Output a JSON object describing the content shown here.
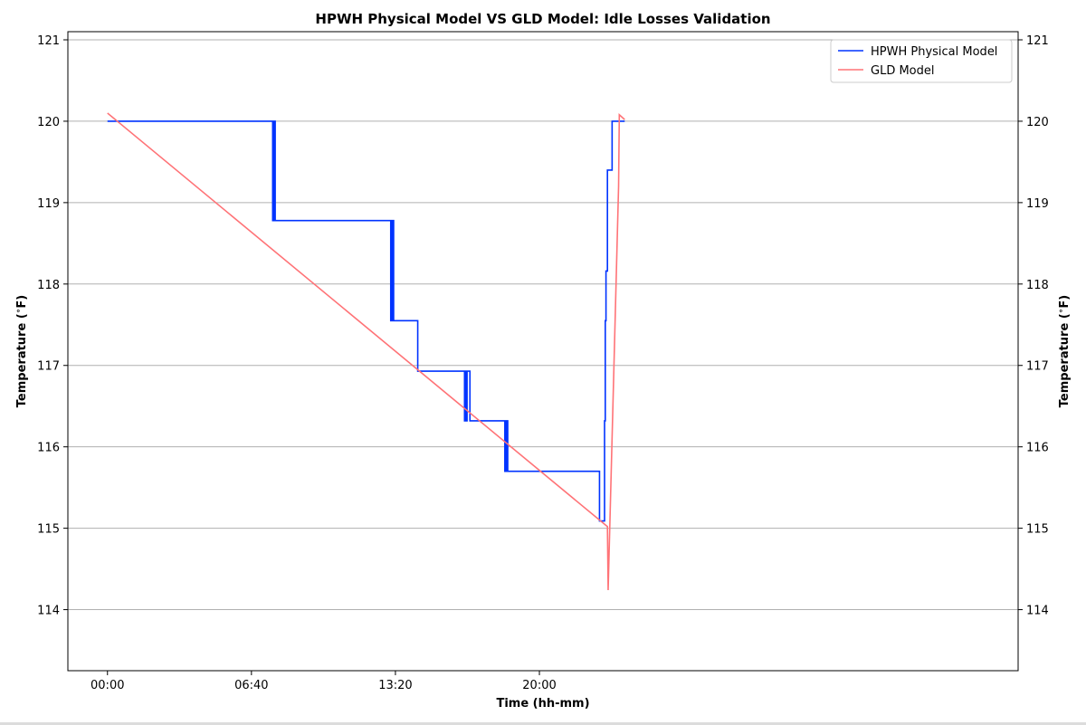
{
  "chart_data": {
    "type": "line",
    "title": "HPWH Physical Model VS GLD Model: Idle Losses Validation",
    "xlabel": "Time (hh-mm)",
    "ylabel": "Temperature ($^\\circ$F)",
    "ylabel_right": "Temperature ($^\\circ$F)",
    "ylim": [
      113.25,
      121.1
    ],
    "xlim_minutes": [
      -110,
      2530
    ],
    "x_ticks": [
      {
        "value": 0,
        "label": "00:00"
      },
      {
        "value": 400,
        "label": "06:40"
      },
      {
        "value": 800,
        "label": "13:20"
      },
      {
        "value": 1200,
        "label": "20:00"
      }
    ],
    "y_ticks": [
      114,
      115,
      116,
      117,
      118,
      119,
      120,
      121
    ],
    "grid": "y-major",
    "legend_position": "top-right",
    "series": [
      {
        "name": "HPWH Physical Model",
        "color": "#0033ff",
        "points": [
          [
            0,
            120.0
          ],
          [
            459,
            120.0
          ],
          [
            459,
            118.78
          ],
          [
            466,
            118.78
          ],
          [
            466,
            120.0
          ],
          [
            461,
            120.0
          ],
          [
            461,
            118.78
          ],
          [
            463,
            118.78
          ],
          [
            463,
            120.0
          ],
          [
            465,
            120.0
          ],
          [
            465,
            118.78
          ],
          [
            787,
            118.78
          ],
          [
            787,
            117.55
          ],
          [
            795,
            117.55
          ],
          [
            795,
            118.78
          ],
          [
            789,
            118.78
          ],
          [
            789,
            117.55
          ],
          [
            791,
            117.55
          ],
          [
            791,
            118.78
          ],
          [
            793,
            118.78
          ],
          [
            793,
            117.55
          ],
          [
            862,
            117.55
          ],
          [
            862,
            116.93
          ],
          [
            992,
            116.93
          ],
          [
            992,
            116.32
          ],
          [
            999,
            116.32
          ],
          [
            999,
            116.93
          ],
          [
            994,
            116.93
          ],
          [
            994,
            116.32
          ],
          [
            996,
            116.32
          ],
          [
            996,
            116.93
          ],
          [
            1007,
            116.93
          ],
          [
            1007,
            116.32
          ],
          [
            1104,
            116.32
          ],
          [
            1104,
            115.7
          ],
          [
            1112,
            115.7
          ],
          [
            1112,
            116.32
          ],
          [
            1106,
            116.32
          ],
          [
            1106,
            115.7
          ],
          [
            1108,
            115.7
          ],
          [
            1108,
            116.32
          ],
          [
            1110,
            116.32
          ],
          [
            1110,
            115.7
          ],
          [
            1367,
            115.7
          ],
          [
            1367,
            115.09
          ],
          [
            1381,
            115.09
          ],
          [
            1381,
            116.32
          ],
          [
            1383,
            116.32
          ],
          [
            1383,
            117.55
          ],
          [
            1385,
            117.55
          ],
          [
            1385,
            118.16
          ],
          [
            1389,
            118.16
          ],
          [
            1389,
            119.4
          ],
          [
            1402,
            119.4
          ],
          [
            1402,
            120.0
          ],
          [
            1437,
            120.0
          ]
        ]
      },
      {
        "name": "GLD Model",
        "color": "#ff7377",
        "points": [
          [
            0,
            120.1
          ],
          [
            1389,
            115.02
          ],
          [
            1391,
            114.24
          ],
          [
            1420,
            119.2
          ],
          [
            1422,
            120.08
          ],
          [
            1437,
            120.02
          ]
        ]
      }
    ]
  }
}
